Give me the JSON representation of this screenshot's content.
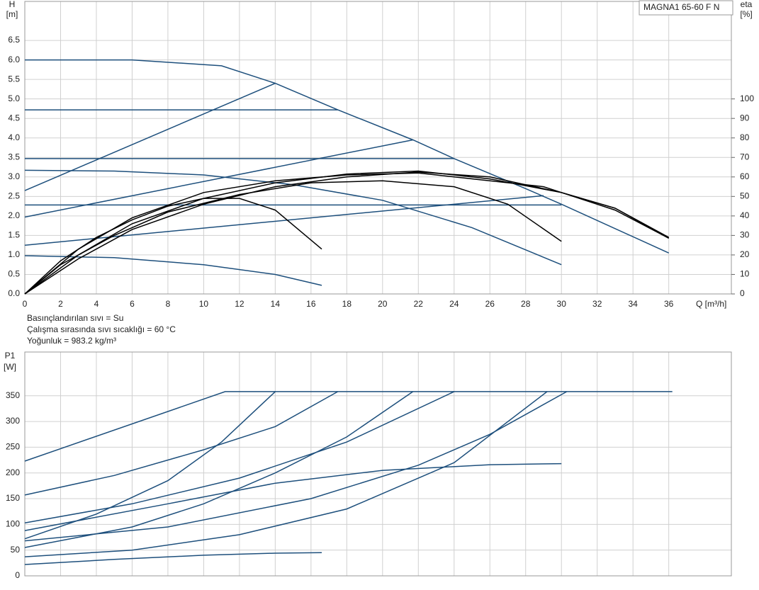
{
  "chart_data": [
    {
      "type": "line",
      "title": "MAGNA1 65-60 F N",
      "ylabel": "H",
      "yunit": "[m]",
      "y2label": "eta",
      "y2unit": "[%]",
      "xlabel": "Q [m³/h]",
      "annotations": [
        "Basınçlandırılan sıvı = Su",
        "Çalışma sırasında sıvı sıcaklığı = 60 °C",
        "Yoğunluk = 983.2 kg/m³"
      ],
      "xlim": [
        0,
        39.5
      ],
      "xticks": [
        0,
        2,
        4,
        6,
        8,
        10,
        12,
        14,
        16,
        18,
        20,
        22,
        24,
        26,
        28,
        30,
        32,
        34,
        36
      ],
      "ylim": [
        0,
        7.5
      ],
      "yticks": [
        {
          "value": 0,
          "label": "0.0"
        },
        0.5,
        {
          "value": 1,
          "label": "1.0"
        },
        1.5,
        {
          "value": 2,
          "label": "2.0"
        },
        2.5,
        {
          "value": 3,
          "label": "3.0"
        },
        3.5,
        {
          "value": 4,
          "label": "4.0"
        },
        4.5,
        {
          "value": 5,
          "label": "5.0"
        },
        5.5,
        {
          "value": 6,
          "label": "6.0"
        },
        6.5
      ],
      "y2lim": [
        0,
        150
      ],
      "y2ticks": [
        0,
        10,
        20,
        30,
        40,
        50,
        60,
        70,
        80,
        90,
        100
      ],
      "grid": true,
      "series": [
        {
          "color": "#1d4f7c",
          "x": [
            0,
            6,
            11,
            14,
            17.5,
            21.7,
            24,
            28,
            30,
            36
          ],
          "values": [
            6.0,
            6.0,
            5.85,
            5.4,
            4.72,
            3.95,
            3.47,
            2.7,
            2.3,
            1.05
          ]
        },
        {
          "color": "#1d4f7c",
          "x": [
            0,
            17.5
          ],
          "values": [
            4.72,
            4.72
          ]
        },
        {
          "color": "#1d4f7c",
          "x": [
            0,
            24
          ],
          "values": [
            3.47,
            3.47
          ]
        },
        {
          "color": "#1d4f7c",
          "x": [
            0,
            30
          ],
          "values": [
            2.28,
            2.28
          ]
        },
        {
          "color": "#1d4f7c",
          "x": [
            0,
            14
          ],
          "values": [
            2.65,
            5.4
          ]
        },
        {
          "color": "#1d4f7c",
          "x": [
            0,
            21.7
          ],
          "values": [
            1.97,
            3.95
          ]
        },
        {
          "color": "#1d4f7c",
          "x": [
            0,
            29
          ],
          "values": [
            1.25,
            2.52
          ]
        },
        {
          "color": "#1d4f7c",
          "x": [
            0,
            5,
            10,
            15,
            20,
            25,
            30
          ],
          "values": [
            3.17,
            3.15,
            3.05,
            2.8,
            2.4,
            1.7,
            0.75
          ]
        },
        {
          "color": "#1d4f7c",
          "x": [
            0,
            5,
            10,
            14,
            16.6
          ],
          "values": [
            0.98,
            0.93,
            0.75,
            0.5,
            0.22
          ]
        },
        {
          "color": "#000000",
          "axis": "y2",
          "x": [
            0,
            2,
            4,
            6,
            8,
            10,
            12,
            14,
            16.6
          ],
          "values": [
            0,
            17,
            29,
            38,
            45,
            49,
            49,
            43,
            23
          ]
        },
        {
          "color": "#000000",
          "axis": "y2",
          "x": [
            0,
            2,
            5,
            8,
            12,
            16,
            20,
            24,
            27,
            30
          ],
          "values": [
            0,
            15,
            30,
            42,
            51,
            57,
            58,
            55,
            46,
            27
          ]
        },
        {
          "color": "#000000",
          "axis": "y2",
          "x": [
            0,
            3,
            6,
            10,
            14,
            18,
            22,
            26,
            30,
            33,
            36
          ],
          "values": [
            0,
            20,
            36,
            49,
            57,
            61.5,
            63,
            59,
            52,
            43,
            28.6
          ]
        },
        {
          "color": "#000000",
          "axis": "y2",
          "x": [
            0,
            3,
            6,
            10,
            14,
            18,
            22,
            26,
            29,
            30,
            33,
            36
          ],
          "values": [
            0,
            23,
            39,
            52,
            58,
            61,
            62,
            58,
            55,
            52,
            44,
            28.6
          ]
        },
        {
          "color": "#000000",
          "axis": "y2",
          "x": [
            0,
            3,
            6,
            10,
            14,
            18,
            22,
            26,
            28,
            30,
            33,
            36
          ],
          "values": [
            0,
            18,
            33,
            46,
            55,
            60,
            62.5,
            60,
            56,
            52,
            44,
            29
          ]
        }
      ]
    },
    {
      "type": "line",
      "ylabel": "P1",
      "yunit": "[W]",
      "xlim": [
        0,
        39.5
      ],
      "xticks": [
        0,
        2,
        4,
        6,
        8,
        10,
        12,
        14,
        16,
        18,
        20,
        22,
        24,
        26,
        28,
        30,
        32,
        34,
        36
      ],
      "ylim": [
        0,
        435
      ],
      "yticks": [
        0,
        50,
        100,
        150,
        200,
        250,
        300,
        350
      ],
      "grid": true,
      "series": [
        {
          "color": "#1d4f7c",
          "x": [
            0,
            11.2,
            36.2
          ],
          "values": [
            223,
            358,
            358
          ]
        },
        {
          "color": "#1d4f7c",
          "x": [
            0,
            5,
            10,
            14,
            17.5
          ],
          "values": [
            157,
            195,
            245,
            290,
            358
          ]
        },
        {
          "color": "#1d4f7c",
          "x": [
            0,
            6,
            12,
            18,
            24
          ],
          "values": [
            103,
            140,
            190,
            260,
            358
          ]
        },
        {
          "color": "#1d4f7c",
          "x": [
            0,
            4,
            8,
            11,
            14
          ],
          "values": [
            72,
            120,
            185,
            260,
            358
          ]
        },
        {
          "color": "#1d4f7c",
          "x": [
            0,
            6,
            10,
            14,
            18,
            21.7
          ],
          "values": [
            55,
            95,
            140,
            200,
            270,
            358
          ]
        },
        {
          "color": "#1d4f7c",
          "x": [
            0,
            8,
            16,
            22,
            26,
            30.3
          ],
          "values": [
            68,
            95,
            150,
            215,
            275,
            358
          ]
        },
        {
          "color": "#1d4f7c",
          "x": [
            0,
            6,
            12,
            18,
            24,
            29.2
          ],
          "values": [
            37,
            50,
            80,
            130,
            220,
            358
          ]
        },
        {
          "color": "#1d4f7c",
          "x": [
            0,
            8,
            14,
            20,
            26,
            30
          ],
          "values": [
            88,
            140,
            180,
            205,
            216,
            218
          ]
        },
        {
          "color": "#1d4f7c",
          "x": [
            0,
            5,
            10,
            14,
            16.6
          ],
          "values": [
            22,
            32,
            40,
            44,
            45
          ]
        }
      ]
    }
  ]
}
